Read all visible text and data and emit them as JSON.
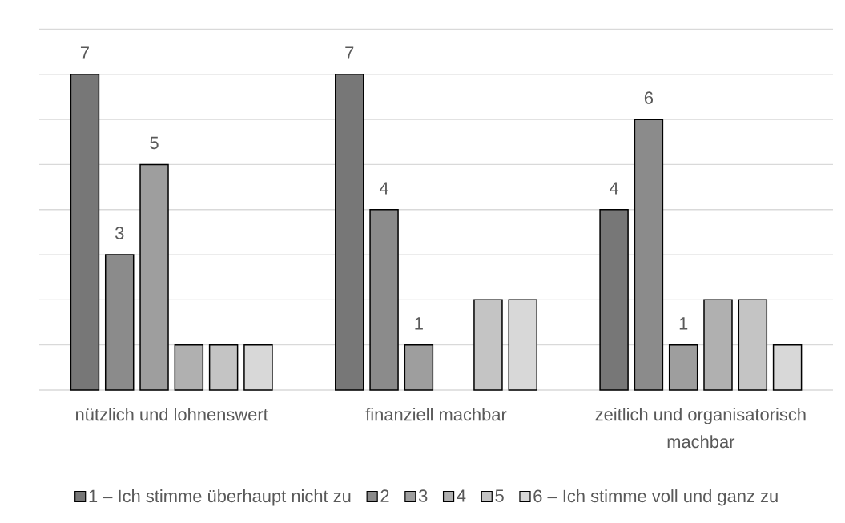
{
  "chart_data": {
    "type": "bar",
    "categories": [
      "nützlich und lohnenswert",
      "finanziell machbar",
      "zeitlich und organisatorisch machbar"
    ],
    "series": [
      {
        "name": "1 – Ich stimme überhaupt nicht zu",
        "color": "#777777",
        "values": [
          7,
          7,
          4
        ],
        "value_labels": [
          "7",
          "7",
          "4"
        ]
      },
      {
        "name": "2",
        "color": "#8b8b8b",
        "values": [
          3,
          4,
          6
        ],
        "value_labels": [
          "3",
          "4",
          "6"
        ]
      },
      {
        "name": "3",
        "color": "#9e9e9e",
        "values": [
          5,
          1,
          1
        ],
        "value_labels": [
          "5",
          "1",
          "1"
        ]
      },
      {
        "name": "4",
        "color": "#b0b0b0",
        "values": [
          1,
          null,
          2
        ]
      },
      {
        "name": "5",
        "color": "#c4c4c4",
        "values": [
          1,
          2,
          2
        ]
      },
      {
        "name": "6 – Ich stimme voll und ganz zu",
        "color": "#d8d8d8",
        "values": [
          1,
          2,
          1
        ]
      }
    ],
    "ylim": [
      0,
      8
    ],
    "yticks": [
      {
        "value": 0,
        "label": null
      },
      {
        "value": 1,
        "label": null
      },
      {
        "value": 2,
        "label": null
      },
      {
        "value": 3,
        "label": null
      },
      {
        "value": 4,
        "label": null
      },
      {
        "value": 5,
        "label": null
      },
      {
        "value": 6,
        "label": null
      },
      {
        "value": 7,
        "label": null
      },
      {
        "value": 8,
        "label": null
      }
    ],
    "grid": "y",
    "legend": "bottom",
    "tick_labels": "x"
  }
}
